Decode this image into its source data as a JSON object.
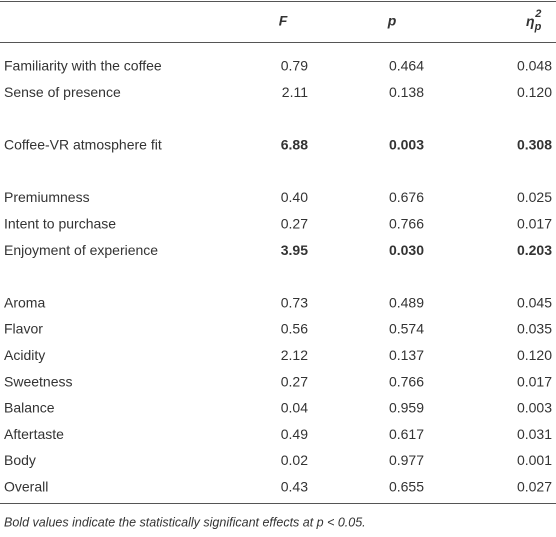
{
  "table": {
    "header": {
      "columns": [
        "F",
        "p"
      ],
      "eta": {
        "symbol": "η",
        "sub": "p",
        "sup": "2"
      }
    },
    "groups": [
      [
        {
          "label": "Familiarity with the coffee",
          "cells": [
            "0.79",
            "0.464",
            "0.048"
          ],
          "bold": false
        },
        {
          "label": "Sense of presence",
          "cells": [
            "2.11",
            "0.138",
            "0.120"
          ],
          "bold": false
        }
      ],
      [
        {
          "label": "Coffee-VR atmosphere fit",
          "cells": [
            "6.88",
            "0.003",
            "0.308"
          ],
          "bold": true
        }
      ],
      [
        {
          "label": "Premiumness",
          "cells": [
            "0.40",
            "0.676",
            "0.025"
          ],
          "bold": false
        },
        {
          "label": "Intent to purchase",
          "cells": [
            "0.27",
            "0.766",
            "0.017"
          ],
          "bold": false
        },
        {
          "label": "Enjoyment of experience",
          "cells": [
            "3.95",
            "0.030",
            "0.203"
          ],
          "bold": true
        }
      ],
      [
        {
          "label": "Aroma",
          "cells": [
            "0.73",
            "0.489",
            "0.045"
          ],
          "bold": false
        },
        {
          "label": "Flavor",
          "cells": [
            "0.56",
            "0.574",
            "0.035"
          ],
          "bold": false
        },
        {
          "label": "Acidity",
          "cells": [
            "2.12",
            "0.137",
            "0.120"
          ],
          "bold": false
        },
        {
          "label": "Sweetness",
          "cells": [
            "0.27",
            "0.766",
            "0.017"
          ],
          "bold": false
        },
        {
          "label": "Balance",
          "cells": [
            "0.04",
            "0.959",
            "0.003"
          ],
          "bold": false
        },
        {
          "label": "Aftertaste",
          "cells": [
            "0.49",
            "0.617",
            "0.031"
          ],
          "bold": false
        },
        {
          "label": "Body",
          "cells": [
            "0.02",
            "0.977",
            "0.001"
          ],
          "bold": false
        },
        {
          "label": "Overall",
          "cells": [
            "0.43",
            "0.655",
            "0.027"
          ],
          "bold": false
        }
      ]
    ],
    "footnote": "Bold values indicate the statistically significant effects at p < 0.05."
  }
}
